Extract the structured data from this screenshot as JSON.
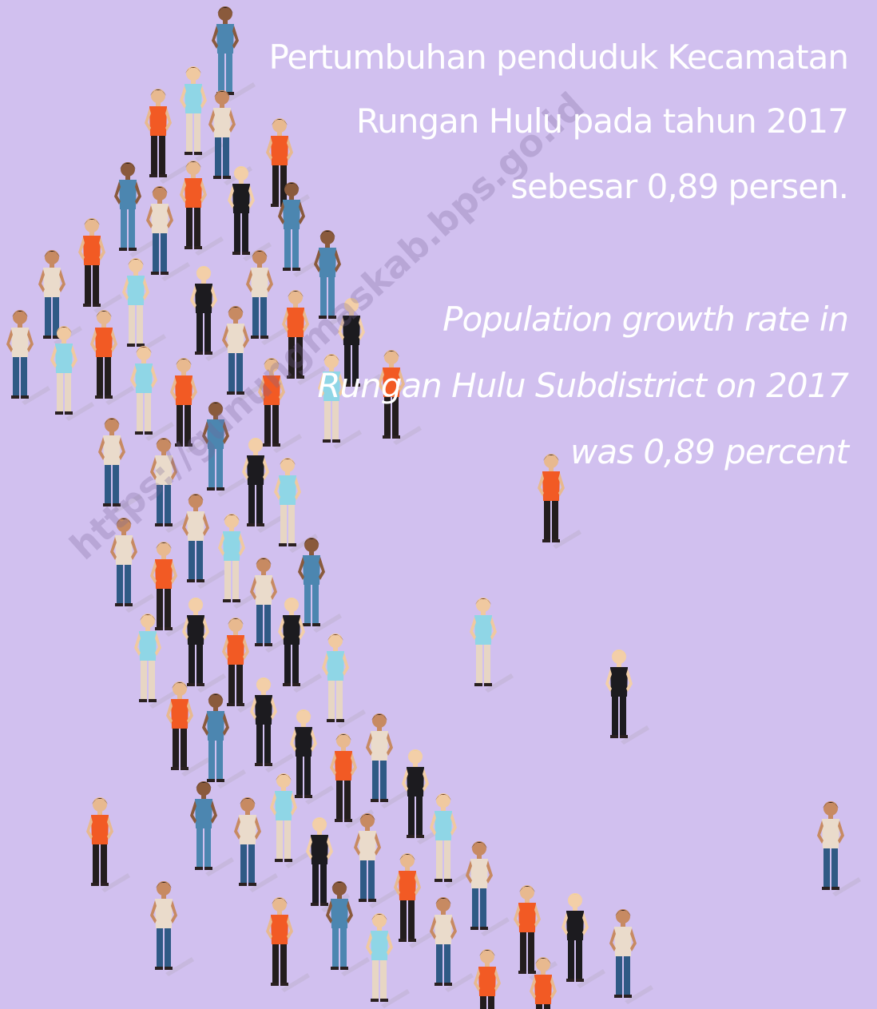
{
  "indonesian": [
    "Pertumbuhan penduduk Kecamatan",
    "Rungan Hulu pada tahun 2017",
    "sebesar 0,89 persen."
  ],
  "english": [
    "Population growth rate in",
    "Rungan Hulu Subdistrict on 2017",
    "was 0,89 percent"
  ],
  "watermark": "https://gunungmaskab.bps.go.id"
}
